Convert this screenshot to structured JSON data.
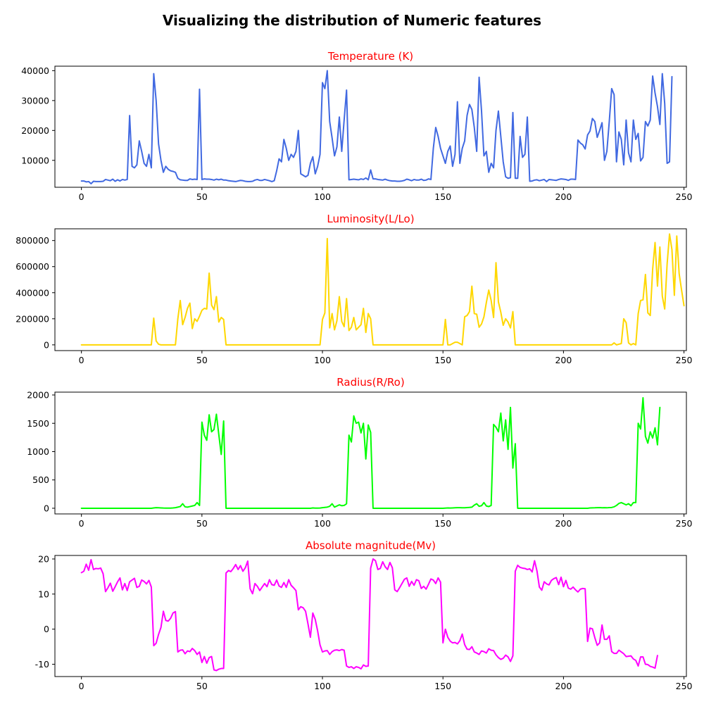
{
  "figure": {
    "title": "Visualizing the distribution of Numeric features",
    "subplot_title_color": "#ff0000"
  },
  "chart_data": [
    {
      "type": "line",
      "title": "Temperature (K)",
      "xlabel": "",
      "ylabel": "",
      "color": "#4169e1",
      "grid": false,
      "xlim": [
        -11,
        251
      ],
      "ylim": [
        1000,
        41500
      ],
      "xticks": [
        0,
        50,
        100,
        150,
        200,
        250
      ],
      "yticks": [
        10000,
        20000,
        30000,
        40000
      ],
      "x_start": 0,
      "values": [
        3100,
        3100,
        2800,
        2900,
        2200,
        3000,
        2900,
        2900,
        2900,
        3000,
        3600,
        3400,
        3200,
        3700,
        3000,
        3500,
        3100,
        3600,
        3400,
        3600,
        25000,
        8000,
        7500,
        8500,
        16500,
        13000,
        9000,
        8000,
        12000,
        7500,
        39000,
        30000,
        15500,
        10000,
        6000,
        8000,
        7000,
        6500,
        6300,
        6000,
        4000,
        3500,
        3400,
        3300,
        3300,
        3800,
        3600,
        3700,
        3600,
        33800,
        3600,
        3800,
        3700,
        3700,
        3600,
        3400,
        3700,
        3500,
        3700,
        3400,
        3400,
        3200,
        3100,
        3000,
        2900,
        3100,
        3300,
        3200,
        3000,
        2900,
        2900,
        3000,
        3400,
        3600,
        3300,
        3300,
        3600,
        3400,
        3200,
        2900,
        3200,
        6500,
        10500,
        9500,
        17000,
        14000,
        10000,
        12000,
        11000,
        13000,
        20000,
        5500,
        5000,
        4500,
        5000,
        9000,
        11200,
        5500,
        8000,
        12000,
        36000,
        34000,
        40000,
        23000,
        17500,
        11500,
        14500,
        24500,
        13000,
        23500,
        33500,
        3500,
        3600,
        3700,
        3600,
        3500,
        3800,
        3600,
        4100,
        3500,
        6800,
        3800,
        3800,
        3600,
        3500,
        3400,
        3700,
        3400,
        3200,
        3100,
        3100,
        3000,
        3000,
        3100,
        3300,
        3700,
        3500,
        3200,
        3600,
        3400,
        3400,
        3700,
        3300,
        3400,
        3800,
        3600,
        14000,
        21000,
        18000,
        14000,
        11500,
        9000,
        13000,
        14800,
        8000,
        12000,
        29600,
        9000,
        14000,
        16500,
        25000,
        28700,
        27000,
        21000,
        13000,
        37800,
        26500,
        11500,
        13000,
        6000,
        9000,
        7500,
        20000,
        26500,
        18000,
        9500,
        4500,
        4000,
        4200,
        26000,
        4000,
        4000,
        18000,
        11000,
        12000,
        24500,
        3000,
        3100,
        3400,
        3500,
        3200,
        3400,
        3600,
        2900,
        3600,
        3500,
        3400,
        3300,
        3600,
        3800,
        3700,
        3600,
        3300,
        3700,
        3700,
        3600,
        16800,
        15800,
        15200,
        13800,
        18500,
        19800,
        24000,
        23000,
        17700,
        20000,
        22600,
        10000,
        13000,
        23000,
        34000,
        32000,
        9500,
        19500,
        17000,
        8500,
        23500,
        12500,
        9500,
        23500,
        17000,
        19000,
        9800,
        11000,
        23000,
        21500,
        23500,
        38200,
        32500,
        28000,
        22000,
        39000,
        29000,
        9000,
        9500,
        38000
      ]
    },
    {
      "type": "line",
      "title": "Luminosity(L/Lo)",
      "xlabel": "",
      "ylabel": "",
      "color": "#ffd700",
      "grid": false,
      "xlim": [
        -11,
        251
      ],
      "ylim": [
        -44000,
        890000
      ],
      "xticks": [
        0,
        50,
        100,
        150,
        200,
        250
      ],
      "yticks": [
        0,
        200000,
        400000,
        600000,
        800000
      ],
      "x_start": 0,
      "values": [
        0,
        0,
        0,
        0,
        0,
        0,
        0,
        0,
        0,
        0,
        0,
        0,
        0,
        0,
        0,
        0,
        0,
        0,
        0,
        0,
        0,
        0,
        0,
        0,
        0,
        0,
        0,
        0,
        0,
        0,
        205000,
        30000,
        5000,
        0,
        0,
        0,
        0,
        0,
        0,
        0,
        200000,
        340000,
        155000,
        210000,
        280000,
        320000,
        125000,
        200000,
        180000,
        220000,
        265000,
        280000,
        275000,
        550000,
        305000,
        270000,
        370000,
        175000,
        210000,
        195000,
        0,
        0,
        0,
        0,
        0,
        0,
        0,
        0,
        0,
        0,
        0,
        0,
        0,
        0,
        0,
        0,
        0,
        0,
        0,
        0,
        0,
        0,
        0,
        0,
        0,
        0,
        0,
        0,
        0,
        0,
        0,
        0,
        0,
        0,
        0,
        0,
        0,
        0,
        0,
        0,
        195000,
        245000,
        815000,
        130000,
        240000,
        115000,
        185000,
        370000,
        180000,
        140000,
        355000,
        110000,
        135000,
        210000,
        115000,
        135000,
        155000,
        280000,
        95000,
        240000,
        200000,
        0,
        0,
        0,
        0,
        0,
        0,
        0,
        0,
        0,
        0,
        0,
        0,
        0,
        0,
        0,
        0,
        0,
        0,
        0,
        0,
        0,
        0,
        0,
        0,
        0,
        0,
        0,
        0,
        0,
        0,
        195000,
        0,
        0,
        10000,
        20000,
        20000,
        10000,
        0,
        215000,
        225000,
        255000,
        450000,
        240000,
        235000,
        135000,
        160000,
        215000,
        325000,
        420000,
        340000,
        210000,
        630000,
        330000,
        250000,
        150000,
        200000,
        175000,
        130000,
        255000,
        0,
        0,
        0,
        0,
        0,
        0,
        0,
        0,
        0,
        0,
        0,
        0,
        0,
        0,
        0,
        0,
        0,
        0,
        0,
        0,
        0,
        0,
        0,
        0,
        0,
        0,
        0,
        0,
        0,
        0,
        0,
        0,
        0,
        0,
        0,
        0,
        0,
        0,
        0,
        0,
        0,
        15000,
        0,
        5000,
        10000,
        200000,
        170000,
        15000,
        0,
        10000,
        0,
        240000,
        340000,
        345000,
        540000,
        245000,
        225000,
        580000,
        785000,
        450000,
        750000,
        375000,
        275000,
        620000,
        850000,
        730000,
        380000,
        835000,
        545000,
        420000,
        300000
      ]
    },
    {
      "type": "line",
      "title": "Radius(R/Ro)",
      "xlabel": "",
      "ylabel": "",
      "color": "#00ff00",
      "grid": false,
      "xlim": [
        -11,
        251
      ],
      "ylim": [
        -100,
        2050
      ],
      "xticks": [
        0,
        50,
        100,
        150,
        200,
        250
      ],
      "yticks": [
        0,
        500,
        1000,
        1500,
        2000
      ],
      "x_start": 0,
      "values": [
        0,
        0,
        0,
        0,
        0,
        0,
        0,
        0,
        0,
        0,
        0,
        0,
        0,
        0,
        0,
        0,
        0,
        0,
        0,
        0,
        0,
        0,
        0,
        0,
        0,
        0,
        0,
        0,
        0,
        0,
        5,
        10,
        8,
        6,
        4,
        3,
        2,
        3,
        6,
        10,
        20,
        30,
        80,
        25,
        20,
        30,
        40,
        50,
        100,
        50,
        1520,
        1290,
        1200,
        1650,
        1350,
        1390,
        1660,
        1300,
        950,
        1540,
        0,
        0,
        0,
        0,
        0,
        0,
        0,
        0,
        0,
        0,
        0,
        0,
        0,
        0,
        0,
        0,
        0,
        0,
        0,
        0,
        0,
        0,
        0,
        0,
        0,
        0,
        0,
        0,
        0,
        0,
        0,
        0,
        0,
        0,
        0,
        0,
        5,
        3,
        2,
        4,
        10,
        15,
        20,
        35,
        80,
        20,
        40,
        60,
        45,
        50,
        80,
        1290,
        1170,
        1630,
        1500,
        1520,
        1330,
        1500,
        870,
        1470,
        1340,
        0,
        0,
        0,
        0,
        0,
        0,
        0,
        0,
        0,
        0,
        0,
        0,
        0,
        0,
        0,
        0,
        0,
        0,
        0,
        0,
        0,
        0,
        0,
        0,
        0,
        0,
        0,
        0,
        0,
        0,
        3,
        5,
        4,
        6,
        8,
        10,
        10,
        8,
        9,
        12,
        15,
        20,
        55,
        80,
        35,
        45,
        100,
        40,
        30,
        50,
        1480,
        1430,
        1350,
        1680,
        1190,
        1560,
        1040,
        1780,
        710,
        1140,
        0,
        0,
        0,
        0,
        0,
        0,
        0,
        0,
        0,
        0,
        0,
        0,
        0,
        0,
        0,
        0,
        0,
        0,
        0,
        0,
        0,
        0,
        0,
        0,
        0,
        0,
        0,
        0,
        0,
        0,
        5,
        7,
        8,
        10,
        12,
        9,
        10,
        8,
        12,
        14,
        25,
        50,
        85,
        100,
        80,
        60,
        80,
        45,
        100,
        100,
        1500,
        1400,
        1950,
        1270,
        1150,
        1350,
        1240,
        1420,
        1120,
        1780
      ]
    },
    {
      "type": "line",
      "title": "Absolute magnitude(Mv)",
      "xlabel": "",
      "ylabel": "",
      "color": "#ff00ff",
      "grid": false,
      "xlim": [
        -11,
        251
      ],
      "ylim": [
        -13.5,
        21
      ],
      "xticks": [
        0,
        50,
        100,
        150,
        200,
        250
      ],
      "yticks": [
        -10,
        0,
        10,
        20
      ],
      "x_start": 0,
      "values": [
        16.1,
        16.5,
        18.5,
        16.8,
        19.8,
        17.0,
        17.3,
        17.2,
        17.4,
        15.8,
        10.7,
        11.8,
        13.1,
        10.8,
        12.1,
        13.5,
        14.6,
        11.2,
        13.0,
        11.0,
        13.5,
        14.0,
        14.5,
        11.9,
        12.2,
        14.0,
        13.6,
        12.9,
        13.9,
        12.0,
        -4.7,
        -4.0,
        -1.5,
        0.5,
        5.1,
        2.5,
        2.3,
        3.1,
        4.6,
        5.0,
        -6.5,
        -6.0,
        -5.9,
        -7.0,
        -6.2,
        -6.4,
        -5.5,
        -6.1,
        -7.2,
        -6.5,
        -9.5,
        -7.8,
        -9.7,
        -8.1,
        -7.8,
        -11.6,
        -11.8,
        -11.4,
        -11.2,
        -11.2,
        16.0,
        16.7,
        16.4,
        17.3,
        18.4,
        17.0,
        18.1,
        16.5,
        17.5,
        19.4,
        11.5,
        10.1,
        13.0,
        12.2,
        11.0,
        12.0,
        13.0,
        12.1,
        14.1,
        12.7,
        12.5,
        14.0,
        12.3,
        11.9,
        13.3,
        11.9,
        14.1,
        12.5,
        11.8,
        11.0,
        5.5,
        6.4,
        6.1,
        5.1,
        1.5,
        -2.3,
        4.6,
        2.8,
        -0.5,
        -4.5,
        -6.5,
        -6.2,
        -6.1,
        -7.2,
        -6.4,
        -6.0,
        -5.9,
        -6.1,
        -5.8,
        -6.0,
        -10.5,
        -10.9,
        -10.7,
        -11.2,
        -10.7,
        -10.9,
        -11.3,
        -10.2,
        -10.6,
        -10.5,
        17.4,
        20.0,
        19.5,
        17.0,
        17.3,
        19.2,
        17.8,
        17.0,
        19.0,
        17.5,
        11.2,
        10.7,
        11.8,
        13.0,
        14.2,
        14.6,
        12.2,
        13.6,
        12.5,
        14.1,
        13.8,
        11.6,
        12.2,
        11.4,
        12.8,
        14.3,
        14.0,
        13.0,
        14.6,
        13.4,
        -3.9,
        0.0,
        -2.3,
        -3.4,
        -3.9,
        -3.8,
        -4.2,
        -3.3,
        -1.4,
        -4.4,
        -5.7,
        -5.8,
        -5.0,
        -6.5,
        -6.8,
        -7.2,
        -6.2,
        -6.4,
        -6.8,
        -5.6,
        -6.0,
        -6.1,
        -7.3,
        -8.1,
        -8.6,
        -8.3,
        -7.4,
        -7.9,
        -9.2,
        -7.6,
        16.5,
        18.2,
        17.6,
        17.4,
        17.3,
        17.0,
        17.2,
        16.3,
        19.5,
        16.6,
        12.0,
        11.1,
        13.5,
        12.9,
        12.6,
        13.9,
        14.4,
        14.7,
        12.7,
        14.8,
        12.1,
        13.9,
        11.7,
        11.4,
        12.0,
        11.2,
        10.6,
        11.4,
        11.6,
        11.5,
        -3.5,
        0.3,
        0.1,
        -2.4,
        -4.6,
        -3.9,
        1.2,
        -2.9,
        -2.9,
        -1.9,
        -6.4,
        -6.9,
        -6.9,
        -6.0,
        -6.5,
        -7.0,
        -7.8,
        -7.7,
        -7.6,
        -8.5,
        -8.9,
        -10.5,
        -7.9,
        -7.9,
        -10.0,
        -10.1,
        -10.6,
        -10.8,
        -11.1,
        -7.5
      ]
    }
  ]
}
